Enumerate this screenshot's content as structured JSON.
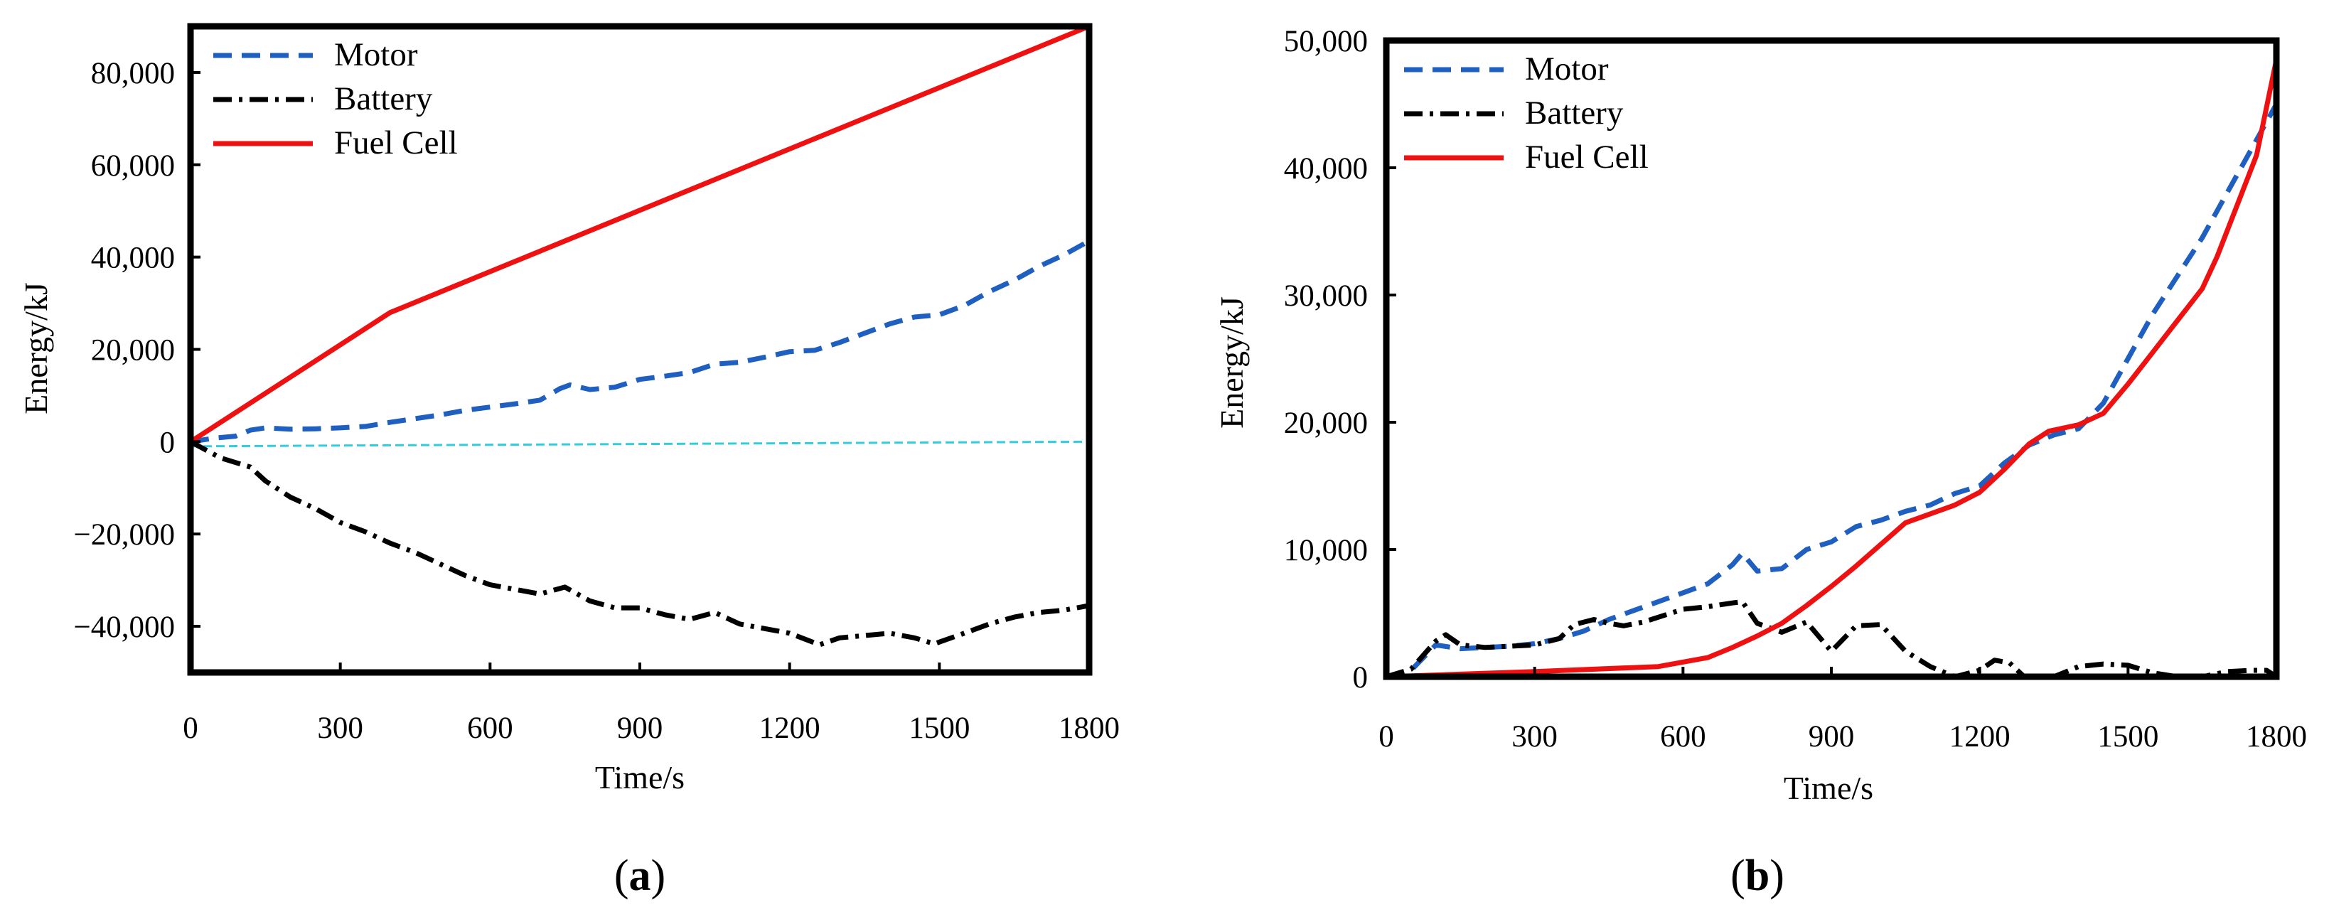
{
  "chart_data": [
    {
      "type": "line",
      "panel": "a",
      "caption_open": "(",
      "caption_letter": "a",
      "caption_close": ")",
      "xlabel": "Time/s",
      "ylabel": "Energy/kJ",
      "xlim": [
        0,
        1800
      ],
      "ylim": [
        -50000,
        90000
      ],
      "xticks": [
        0,
        300,
        600,
        900,
        1200,
        1500,
        1800
      ],
      "xtick_labels": [
        "0",
        "300",
        "600",
        "900",
        "1200",
        "1500",
        "1800"
      ],
      "yticks": [
        80000,
        60000,
        40000,
        20000,
        0,
        -20000,
        -40000
      ],
      "ytick_labels": [
        "80,000",
        "60,000",
        "40,000",
        "20,000",
        "0",
        "−20,000",
        "−40,000"
      ],
      "legend_position": "top-left",
      "zero_line": {
        "color": "#33ccdd",
        "values": [
          [
            0,
            -1000
          ],
          [
            1800,
            0
          ]
        ]
      },
      "series": [
        {
          "name": "Motor",
          "color": "#1f5fbf",
          "style": "dashed",
          "values": [
            [
              0,
              0
            ],
            [
              50,
              800
            ],
            [
              90,
              1200
            ],
            [
              120,
              2500
            ],
            [
              150,
              3000
            ],
            [
              200,
              2700
            ],
            [
              250,
              2800
            ],
            [
              300,
              3000
            ],
            [
              350,
              3300
            ],
            [
              400,
              4200
            ],
            [
              450,
              5000
            ],
            [
              500,
              5800
            ],
            [
              550,
              6800
            ],
            [
              600,
              7500
            ],
            [
              650,
              8200
            ],
            [
              700,
              9000
            ],
            [
              740,
              11500
            ],
            [
              760,
              12300
            ],
            [
              780,
              11800
            ],
            [
              800,
              11300
            ],
            [
              850,
              11800
            ],
            [
              900,
              13500
            ],
            [
              950,
              14200
            ],
            [
              1000,
              15000
            ],
            [
              1050,
              16800
            ],
            [
              1100,
              17200
            ],
            [
              1150,
              18300
            ],
            [
              1200,
              19500
            ],
            [
              1250,
              19800
            ],
            [
              1300,
              21500
            ],
            [
              1350,
              23500
            ],
            [
              1400,
              25500
            ],
            [
              1450,
              27000
            ],
            [
              1500,
              27500
            ],
            [
              1550,
              29500
            ],
            [
              1600,
              32500
            ],
            [
              1650,
              35000
            ],
            [
              1700,
              38000
            ],
            [
              1750,
              40500
            ],
            [
              1800,
              43500
            ]
          ]
        },
        {
          "name": "Battery",
          "color": "#000000",
          "style": "dashdot",
          "values": [
            [
              0,
              0
            ],
            [
              60,
              -3500
            ],
            [
              120,
              -5500
            ],
            [
              150,
              -8500
            ],
            [
              200,
              -12000
            ],
            [
              250,
              -14500
            ],
            [
              300,
              -17500
            ],
            [
              350,
              -19500
            ],
            [
              400,
              -22000
            ],
            [
              450,
              -24000
            ],
            [
              500,
              -26500
            ],
            [
              550,
              -29000
            ],
            [
              600,
              -31000
            ],
            [
              650,
              -32000
            ],
            [
              700,
              -33000
            ],
            [
              750,
              -31500
            ],
            [
              800,
              -34500
            ],
            [
              850,
              -36000
            ],
            [
              900,
              -36000
            ],
            [
              950,
              -37500
            ],
            [
              1000,
              -38500
            ],
            [
              1050,
              -37000
            ],
            [
              1100,
              -39500
            ],
            [
              1150,
              -40500
            ],
            [
              1200,
              -41500
            ],
            [
              1260,
              -44000
            ],
            [
              1300,
              -42500
            ],
            [
              1350,
              -42000
            ],
            [
              1400,
              -41500
            ],
            [
              1450,
              -42500
            ],
            [
              1490,
              -43800
            ],
            [
              1550,
              -41500
            ],
            [
              1600,
              -39500
            ],
            [
              1650,
              -38000
            ],
            [
              1700,
              -37000
            ],
            [
              1750,
              -36500
            ],
            [
              1800,
              -35500
            ]
          ]
        },
        {
          "name": "Fuel Cell",
          "color": "#ee1111",
          "style": "solid",
          "values": [
            [
              0,
              0
            ],
            [
              400,
              28000
            ],
            [
              1800,
              90000
            ]
          ]
        }
      ]
    },
    {
      "type": "line",
      "panel": "b",
      "caption_open": "(",
      "caption_letter": "b",
      "caption_close": ")",
      "xlabel": "Time/s",
      "ylabel": "Energy/kJ",
      "xlim": [
        0,
        1800
      ],
      "ylim": [
        0,
        50000
      ],
      "xticks": [
        0,
        300,
        600,
        900,
        1200,
        1500,
        1800
      ],
      "xtick_labels": [
        "0",
        "300",
        "600",
        "900",
        "1200",
        "1500",
        "1800"
      ],
      "yticks": [
        50000,
        40000,
        30000,
        20000,
        10000,
        0
      ],
      "ytick_labels": [
        "50,000",
        "40,000",
        "30,000",
        "20,000",
        "10,000",
        "0"
      ],
      "legend_position": "top-left",
      "series": [
        {
          "name": "Motor",
          "color": "#1f5fbf",
          "style": "dashed",
          "values": [
            [
              0,
              0
            ],
            [
              50,
              500
            ],
            [
              100,
              2500
            ],
            [
              150,
              2200
            ],
            [
              200,
              2300
            ],
            [
              250,
              2400
            ],
            [
              300,
              2600
            ],
            [
              350,
              3000
            ],
            [
              400,
              3600
            ],
            [
              450,
              4500
            ],
            [
              500,
              5200
            ],
            [
              550,
              5900
            ],
            [
              600,
              6600
            ],
            [
              650,
              7300
            ],
            [
              700,
              8800
            ],
            [
              720,
              9700
            ],
            [
              750,
              8300
            ],
            [
              800,
              8500
            ],
            [
              850,
              10000
            ],
            [
              900,
              10600
            ],
            [
              950,
              11800
            ],
            [
              1000,
              12300
            ],
            [
              1050,
              13000
            ],
            [
              1100,
              13500
            ],
            [
              1150,
              14400
            ],
            [
              1200,
              15000
            ],
            [
              1250,
              16800
            ],
            [
              1300,
              18200
            ],
            [
              1350,
              19000
            ],
            [
              1400,
              19500
            ],
            [
              1450,
              21500
            ],
            [
              1500,
              25000
            ],
            [
              1550,
              28500
            ],
            [
              1600,
              31500
            ],
            [
              1650,
              34500
            ],
            [
              1700,
              38000
            ],
            [
              1750,
              41500
            ],
            [
              1800,
              45000
            ]
          ]
        },
        {
          "name": "Battery",
          "color": "#000000",
          "style": "dashdot",
          "values": [
            [
              0,
              0
            ],
            [
              50,
              600
            ],
            [
              100,
              2800
            ],
            [
              120,
              3300
            ],
            [
              150,
              2500
            ],
            [
              200,
              2300
            ],
            [
              250,
              2400
            ],
            [
              300,
              2500
            ],
            [
              350,
              3000
            ],
            [
              380,
              4100
            ],
            [
              420,
              4500
            ],
            [
              450,
              4200
            ],
            [
              480,
              4000
            ],
            [
              520,
              4300
            ],
            [
              560,
              4800
            ],
            [
              600,
              5300
            ],
            [
              650,
              5500
            ],
            [
              700,
              5800
            ],
            [
              720,
              5900
            ],
            [
              750,
              4200
            ],
            [
              800,
              3500
            ],
            [
              850,
              4300
            ],
            [
              900,
              2000
            ],
            [
              950,
              4000
            ],
            [
              1000,
              4100
            ],
            [
              1050,
              2000
            ],
            [
              1100,
              800
            ],
            [
              1150,
              0
            ],
            [
              1200,
              500
            ],
            [
              1230,
              1300
            ],
            [
              1260,
              1100
            ],
            [
              1290,
              0
            ],
            [
              1350,
              0
            ],
            [
              1400,
              800
            ],
            [
              1450,
              1000
            ],
            [
              1500,
              900
            ],
            [
              1550,
              300
            ],
            [
              1600,
              0
            ],
            [
              1650,
              0
            ],
            [
              1700,
              400
            ],
            [
              1750,
              500
            ],
            [
              1780,
              500
            ],
            [
              1800,
              0
            ]
          ]
        },
        {
          "name": "Fuel Cell",
          "color": "#ee1111",
          "style": "solid",
          "values": [
            [
              0,
              0
            ],
            [
              300,
              400
            ],
            [
              550,
              800
            ],
            [
              650,
              1500
            ],
            [
              700,
              2300
            ],
            [
              750,
              3200
            ],
            [
              800,
              4200
            ],
            [
              850,
              5600
            ],
            [
              900,
              7100
            ],
            [
              950,
              8700
            ],
            [
              1000,
              10400
            ],
            [
              1050,
              12100
            ],
            [
              1100,
              12800
            ],
            [
              1150,
              13500
            ],
            [
              1200,
              14500
            ],
            [
              1250,
              16300
            ],
            [
              1300,
              18300
            ],
            [
              1340,
              19300
            ],
            [
              1400,
              19800
            ],
            [
              1450,
              20700
            ],
            [
              1500,
              23000
            ],
            [
              1550,
              25500
            ],
            [
              1600,
              28000
            ],
            [
              1650,
              30500
            ],
            [
              1680,
              33000
            ],
            [
              1720,
              37000
            ],
            [
              1760,
              41000
            ],
            [
              1800,
              48500
            ]
          ]
        }
      ]
    }
  ]
}
